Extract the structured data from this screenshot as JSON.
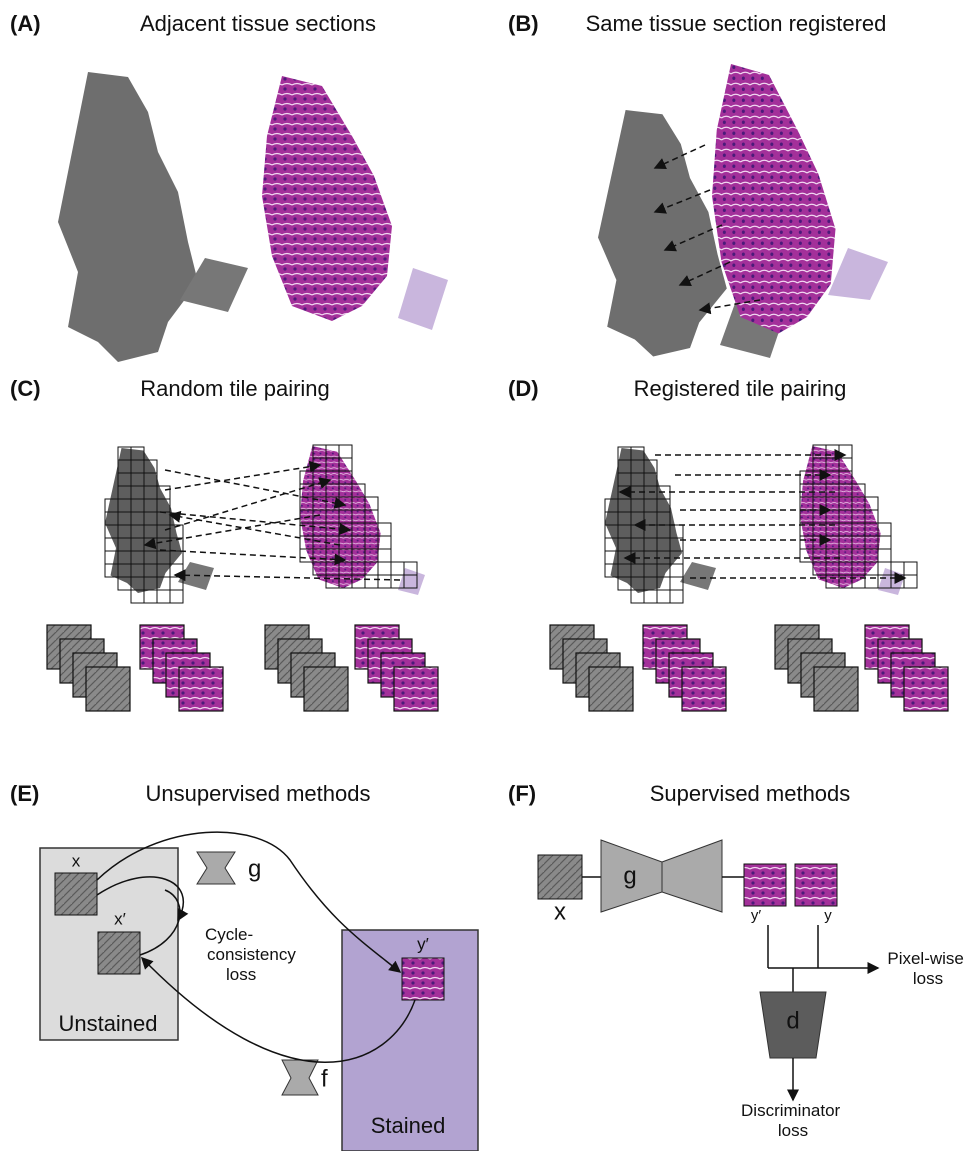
{
  "panels": [
    {
      "label": "(A)",
      "title": "Adjacent tissue sections"
    },
    {
      "label": "(B)",
      "title": "Same tissue section registered"
    },
    {
      "label": "(C)",
      "title": "Random tile pairing"
    },
    {
      "label": "(D)",
      "title": "Registered tile pairing"
    },
    {
      "label": "(E)",
      "title": "Unsupervised methods",
      "x": "x",
      "x_prime": "x′",
      "g": "g",
      "f": "f",
      "y_prime": "y′",
      "cycle_loss": [
        "Cycle-",
        "consistency",
        "loss"
      ],
      "unstained": "Unstained",
      "stained": "Stained"
    },
    {
      "label": "(F)",
      "title": "Supervised methods",
      "x": "x",
      "g": "g",
      "y_prime": "y′",
      "y": "y",
      "pixel_loss": [
        "Pixel-wise",
        "loss"
      ],
      "d": "d",
      "disc_loss": [
        "Discriminator",
        "loss"
      ]
    }
  ]
}
